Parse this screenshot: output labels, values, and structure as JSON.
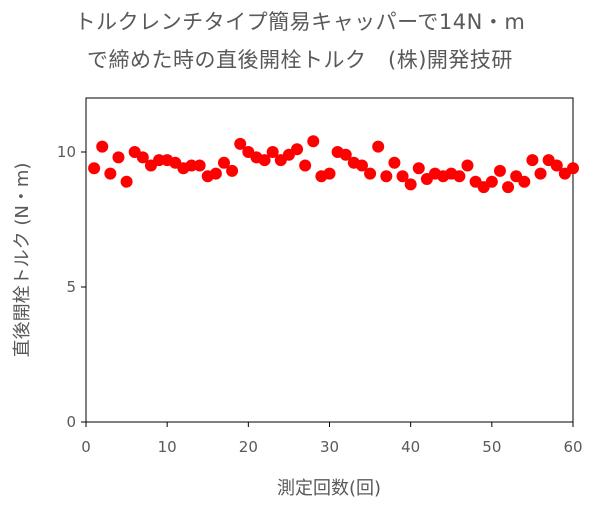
{
  "chart_data": {
    "type": "scatter",
    "title_lines": [
      "トルクレンチタイプ簡易キャッパーで14N・m",
      "で締めた時の直後開栓トルク　(株)開発技研"
    ],
    "xlabel": "測定回数(回)",
    "ylabel": "直後開栓トルク (N・m)",
    "xlim": [
      0,
      60
    ],
    "ylim": [
      0,
      12
    ],
    "x_ticks": [
      0,
      10,
      20,
      30,
      40,
      50,
      60
    ],
    "y_ticks": [
      0,
      5,
      10
    ],
    "grid": false,
    "legend": "none",
    "marker_color": "#ff0000",
    "series": [
      {
        "x": [
          1,
          2,
          3,
          4,
          5,
          6,
          7,
          8,
          9,
          10,
          11,
          12,
          13,
          14,
          15,
          16,
          17,
          18,
          19,
          20,
          21,
          22,
          23,
          24,
          25,
          26,
          27,
          28,
          29,
          30,
          31,
          32,
          33,
          34,
          35,
          36,
          37,
          38,
          39,
          40,
          41,
          42,
          43,
          44,
          45,
          46,
          47,
          48,
          49,
          50,
          51,
          52,
          53,
          54,
          55,
          56,
          57,
          58,
          59,
          60
        ],
        "y": [
          9.4,
          10.2,
          9.2,
          9.8,
          8.9,
          10.0,
          9.8,
          9.5,
          9.7,
          9.7,
          9.6,
          9.4,
          9.5,
          9.5,
          9.1,
          9.2,
          9.6,
          9.3,
          10.3,
          10.0,
          9.8,
          9.7,
          10.0,
          9.7,
          9.9,
          10.1,
          9.5,
          10.4,
          9.1,
          9.2,
          10.0,
          9.9,
          9.6,
          9.5,
          9.2,
          10.2,
          9.1,
          9.6,
          9.1,
          8.8,
          9.4,
          9.0,
          9.2,
          9.1,
          9.2,
          9.1,
          9.5,
          8.9,
          8.7,
          8.9,
          9.3,
          8.7,
          9.1,
          8.9,
          9.7,
          9.2,
          9.7,
          9.5,
          9.2,
          9.4
        ]
      }
    ]
  }
}
